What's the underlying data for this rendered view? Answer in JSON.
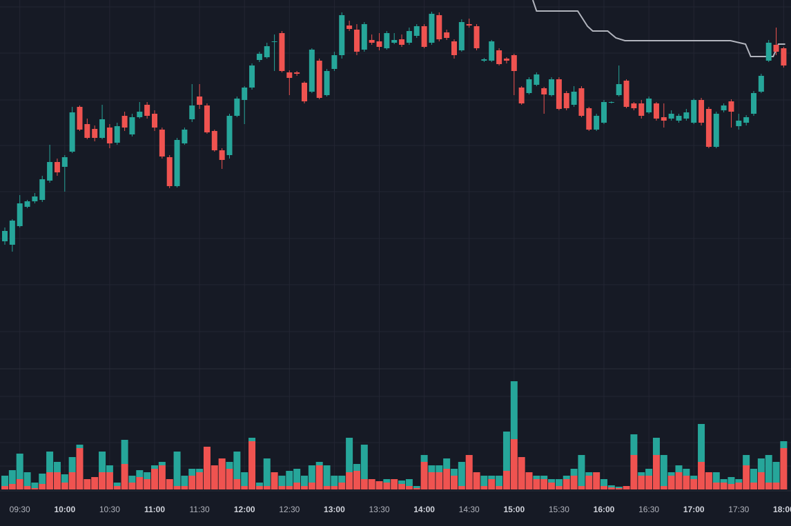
{
  "chart_data": [
    {
      "type": "candlestick",
      "categories": [
        null,
        null,
        "09:30",
        null,
        null,
        null,
        null,
        null,
        "10:00",
        null,
        null,
        null,
        null,
        null,
        "10:30",
        null,
        null,
        null,
        null,
        null,
        "11:00",
        null,
        null,
        null,
        null,
        null,
        "11:30",
        null,
        null,
        null,
        null,
        null,
        "12:00",
        null,
        null,
        null,
        null,
        null,
        "12:30",
        null,
        null,
        null,
        null,
        null,
        "13:00",
        null,
        null,
        null,
        null,
        null,
        "13:30",
        null,
        null,
        null,
        null,
        null,
        "14:00",
        null,
        null,
        null,
        null,
        null,
        "14:30",
        null,
        null,
        null,
        null,
        null,
        "15:00",
        null,
        null,
        null,
        null,
        null,
        "15:30",
        null,
        null,
        null,
        null,
        null,
        "16:00",
        null,
        null,
        null,
        null,
        null,
        "16:30",
        null,
        null,
        null,
        null,
        null,
        "17:00",
        null,
        null,
        null,
        null,
        null,
        "17:30",
        null,
        null,
        null,
        null,
        null,
        "18:00"
      ],
      "open": [
        190,
        185,
        212,
        240,
        248,
        250,
        278,
        305,
        298,
        320,
        385,
        360,
        353,
        340,
        355,
        333,
        372,
        345,
        370,
        388,
        375,
        352,
        312,
        270,
        332,
        367,
        400,
        387,
        350,
        322,
        315,
        372,
        395,
        413,
        453,
        457,
        479,
        492,
        435,
        435,
        420,
        407,
        452,
        402,
        440,
        460,
        503,
        497,
        468,
        482,
        480,
        470,
        478,
        483,
        478,
        488,
        502,
        478,
        518,
        493,
        480,
        467,
        505,
        502,
        452,
        452,
        467,
        455,
        460,
        413,
        405,
        417,
        412,
        402,
        425,
        405,
        388,
        412,
        383,
        352,
        362,
        391,
        402,
        423,
        390,
        390,
        377,
        390,
        370,
        368,
        365,
        368,
        362,
        395,
        382,
        327,
        380,
        393,
        357,
        362,
        375,
        407,
        452,
        475,
        470
      ],
      "high": [
        210,
        222,
        257,
        250,
        260,
        285,
        330,
        310,
        315,
        385,
        387,
        368,
        358,
        388,
        360,
        362,
        378,
        375,
        392,
        392,
        380,
        355,
        315,
        340,
        355,
        418,
        418,
        390,
        352,
        325,
        375,
        400,
        415,
        448,
        465,
        478,
        490,
        495,
        438,
        437,
        422,
        470,
        455,
        440,
        465,
        522,
        510,
        505,
        508,
        490,
        492,
        495,
        492,
        490,
        500,
        505,
        505,
        523,
        522,
        497,
        483,
        512,
        513,
        505,
        456,
        482,
        470,
        457,
        462,
        415,
        428,
        435,
        414,
        428,
        428,
        408,
        415,
        415,
        385,
        375,
        395,
        393,
        445,
        425,
        392,
        395,
        400,
        392,
        390,
        380,
        375,
        382,
        397,
        398,
        385,
        378,
        390,
        396,
        375,
        373,
        408,
        433,
        482,
        500,
        472
      ],
      "low": [
        185,
        175,
        210,
        238,
        245,
        247,
        275,
        285,
        262,
        318,
        350,
        338,
        335,
        338,
        325,
        330,
        350,
        342,
        368,
        368,
        350,
        310,
        267,
        268,
        330,
        363,
        382,
        346,
        320,
        295,
        310,
        370,
        360,
        410,
        450,
        455,
        437,
        435,
        402,
        430,
        390,
        405,
        396,
        400,
        437,
        455,
        495,
        460,
        465,
        475,
        467,
        468,
        476,
        472,
        475,
        485,
        470,
        475,
        480,
        482,
        455,
        465,
        500,
        467,
        450,
        450,
        445,
        448,
        402,
        388,
        403,
        415,
        375,
        400,
        380,
        380,
        385,
        370,
        350,
        350,
        360,
        390,
        400,
        383,
        380,
        368,
        375,
        365,
        355,
        365,
        362,
        365,
        360,
        358,
        325,
        325,
        377,
        355,
        352,
        358,
        372,
        405,
        450,
        460,
        442
      ],
      "close": [
        205,
        220,
        245,
        248,
        255,
        280,
        305,
        290,
        312,
        377,
        352,
        340,
        340,
        367,
        332,
        357,
        355,
        370,
        378,
        372,
        355,
        313,
        270,
        337,
        352,
        387,
        388,
        348,
        322,
        308,
        372,
        397,
        413,
        445,
        462,
        473,
        480,
        437,
        427,
        433,
        393,
        468,
        398,
        437,
        460,
        518,
        498,
        465,
        505,
        478,
        472,
        492,
        482,
        475,
        495,
        502,
        472,
        520,
        483,
        485,
        460,
        508,
        503,
        470,
        454,
        480,
        447,
        452,
        437,
        390,
        425,
        432,
        403,
        425,
        382,
        383,
        407,
        372,
        352,
        372,
        392,
        392,
        418,
        385,
        383,
        372,
        397,
        368,
        365,
        375,
        372,
        377,
        395,
        362,
        327,
        375,
        387,
        378,
        365,
        370,
        405,
        430,
        478,
        465,
        445
      ],
      "up_color": "#26a69a",
      "down_color": "#ef5350",
      "ylim": [
        0,
        540
      ],
      "overlay": {
        "color": "#b2b5be",
        "x": [
          70.5,
          71,
          76.5,
          77.8,
          78.5,
          80.5,
          81.6,
          82.8,
          96.9,
          98.9,
          99.6,
          102.6,
          103.3,
          104.2
        ],
        "values": [
          540,
          524,
          524,
          502,
          495,
          495,
          485,
          481,
          481,
          476,
          458,
          458,
          476,
          476
        ]
      }
    },
    {
      "type": "stacked-bar",
      "ylim": [
        0,
        170
      ],
      "series": [
        {
          "color": "#ef5350",
          "values": [
            5,
            8,
            15,
            5,
            2,
            8,
            25,
            25,
            10,
            25,
            60,
            15,
            18,
            25,
            25,
            5,
            37,
            10,
            18,
            15,
            30,
            35,
            15,
            5,
            5,
            20,
            25,
            62,
            35,
            45,
            30,
            15,
            5,
            70,
            5,
            5,
            25,
            5,
            5,
            10,
            5,
            10,
            35,
            5,
            5,
            10,
            25,
            27,
            15,
            15,
            12,
            10,
            15,
            8,
            5,
            2,
            40,
            25,
            25,
            30,
            20,
            5,
            50,
            25,
            5,
            15,
            5,
            27,
            73,
            47,
            25,
            15,
            15,
            10,
            5,
            15,
            20,
            5,
            20,
            25,
            5,
            3,
            2,
            5,
            50,
            20,
            20,
            50,
            5,
            20,
            25,
            20,
            15,
            40,
            25,
            10,
            10,
            8,
            10,
            35,
            10,
            25,
            10,
            10,
            60
          ]
        },
        {
          "color": "#26a69a",
          "values": [
            15,
            20,
            37,
            20,
            8,
            15,
            30,
            15,
            12,
            22,
            5,
            0,
            0,
            30,
            10,
            5,
            35,
            10,
            10,
            10,
            5,
            5,
            0,
            50,
            15,
            10,
            5,
            0,
            0,
            0,
            10,
            40,
            20,
            5,
            5,
            40,
            0,
            15,
            22,
            20,
            15,
            25,
            5,
            30,
            15,
            10,
            50,
            10,
            50,
            0,
            0,
            5,
            0,
            5,
            10,
            3,
            10,
            10,
            10,
            15,
            10,
            35,
            0,
            0,
            15,
            5,
            15,
            57,
            84,
            0,
            0,
            5,
            5,
            5,
            10,
            5,
            10,
            45,
            5,
            0,
            10,
            3,
            2,
            0,
            30,
            5,
            10,
            25,
            45,
            5,
            10,
            10,
            5,
            55,
            0,
            15,
            5,
            10,
            5,
            15,
            20,
            20,
            40,
            30,
            10
          ]
        }
      ]
    }
  ]
}
